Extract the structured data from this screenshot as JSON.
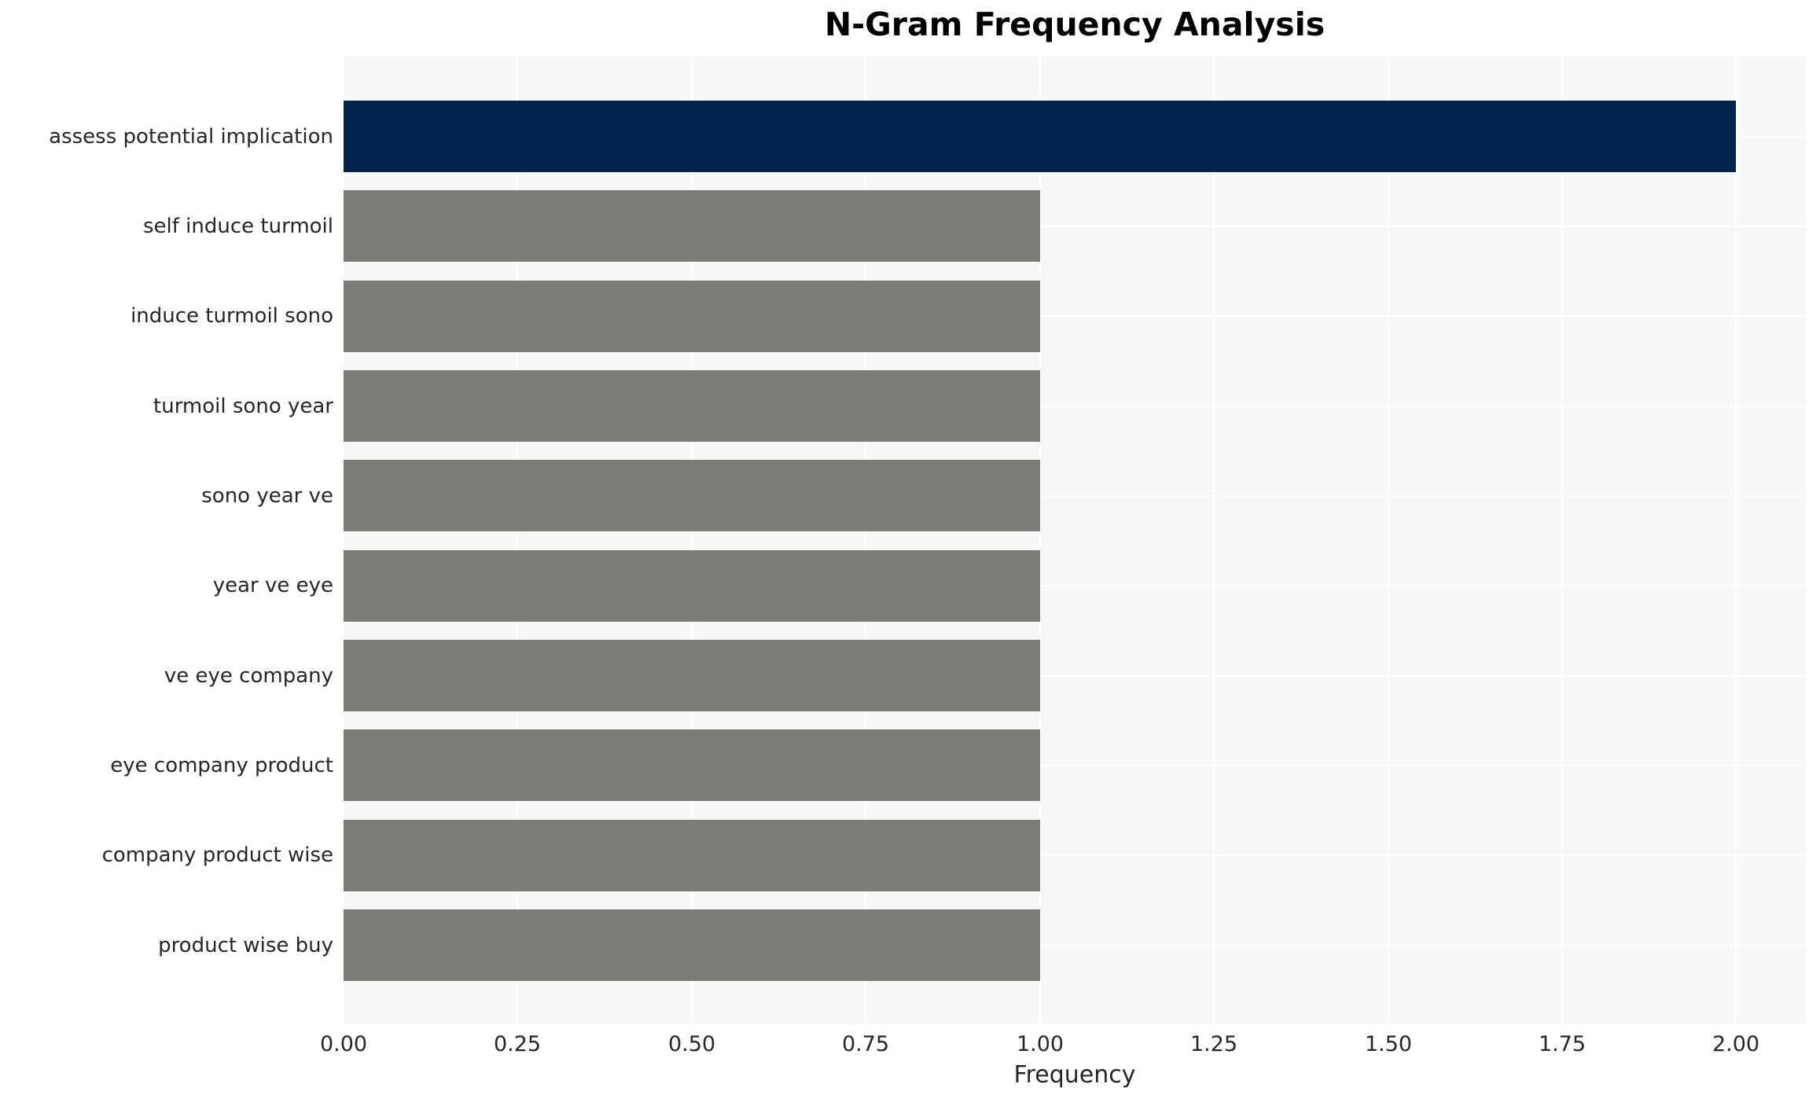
{
  "chart_data": {
    "type": "bar",
    "orientation": "horizontal",
    "title": "N-Gram Frequency Analysis",
    "xlabel": "Frequency",
    "ylabel": "",
    "categories": [
      "assess potential implication",
      "self induce turmoil",
      "induce turmoil sono",
      "turmoil sono year",
      "sono year ve",
      "year ve eye",
      "ve eye company",
      "eye company product",
      "company product wise",
      "product wise buy"
    ],
    "values": [
      2,
      1,
      1,
      1,
      1,
      1,
      1,
      1,
      1,
      1
    ],
    "bar_colors": [
      "#02244f",
      "#7b7b78",
      "#7b7b78",
      "#7b7b78",
      "#7b7b78",
      "#7b7b78",
      "#7b7b78",
      "#7b7b78",
      "#7b7b78",
      "#7b7b78"
    ],
    "xlim": [
      0,
      2.1
    ],
    "xtick_values": [
      0,
      0.25,
      0.5,
      0.75,
      1.0,
      1.25,
      1.5,
      1.75,
      2.0
    ],
    "xtick_labels": [
      "0.00",
      "0.25",
      "0.50",
      "0.75",
      "1.00",
      "1.25",
      "1.50",
      "1.75",
      "2.00"
    ],
    "grid": true,
    "legend_position": "none",
    "colors": {
      "highlight_bar": "#02244f",
      "default_bar": "#7b7b78",
      "plot_background": "#f7f7f7",
      "gridline": "#ffffff",
      "tick_text": "#262626",
      "title_text": "#000000",
      "figure_background": "#ffffff"
    }
  }
}
